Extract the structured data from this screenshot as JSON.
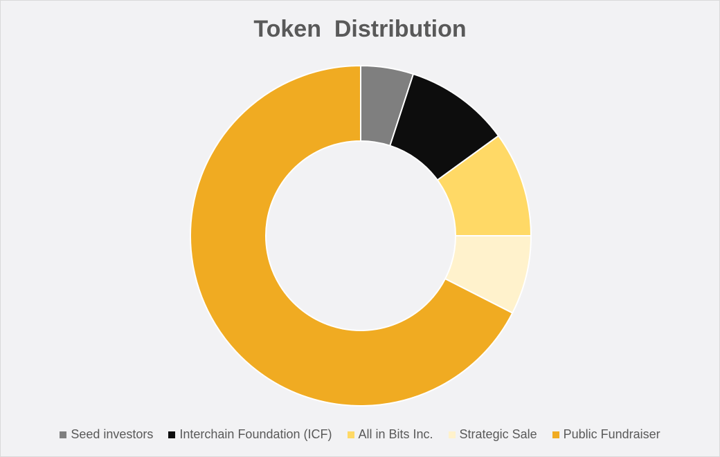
{
  "chart_data": {
    "type": "pie",
    "variant": "donut",
    "title": "Token  Distribution",
    "categories": [
      "Seed investors",
      "Interchain Foundation (ICF)",
      "All in Bits Inc.",
      "Strategic Sale",
      "Public Fundraiser"
    ],
    "values": [
      5,
      10,
      10,
      7.5,
      67.5
    ],
    "colors": [
      "#7f7f7f",
      "#0d0d0d",
      "#ffd966",
      "#fff2cc",
      "#f0ab22"
    ],
    "legend_position": "bottom"
  }
}
